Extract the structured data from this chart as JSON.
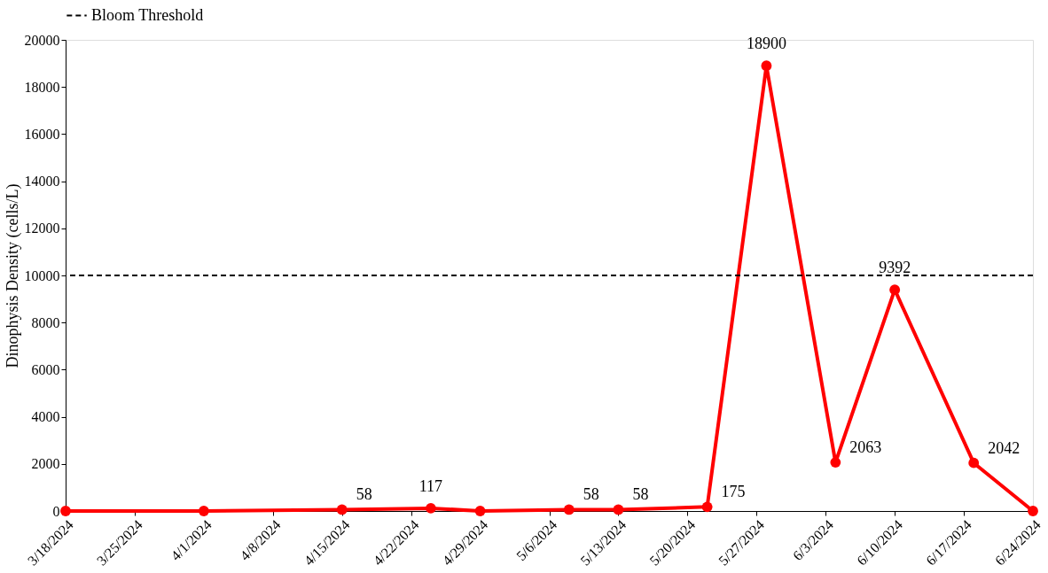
{
  "chart_data": {
    "type": "line",
    "ylabel": "Dinophysis Density (cells/L)",
    "x": [
      "2024-03-18",
      "2024-04-01",
      "2024-04-15",
      "2024-04-24",
      "2024-04-29",
      "2024-05-08",
      "2024-05-13",
      "2024-05-22",
      "2024-05-28",
      "2024-06-04",
      "2024-06-10",
      "2024-06-18",
      "2024-06-24"
    ],
    "series": [
      {
        "color": "#ff0000",
        "values": [
          0,
          0,
          58,
          117,
          0,
          58,
          58,
          175,
          18900,
          2063,
          9392,
          2042,
          0
        ],
        "value_labels": [
          null,
          null,
          "58",
          "117",
          null,
          "58",
          "58",
          "175",
          "18900",
          "2063",
          "9392",
          "2042",
          null
        ]
      }
    ],
    "xlim": [
      "2024-03-18",
      "2024-06-24"
    ],
    "xticks": [
      {
        "value": "2024-03-18",
        "label": "3/18/2024"
      },
      {
        "value": "2024-03-25",
        "label": "3/25/2024"
      },
      {
        "value": "2024-04-01",
        "label": "4/1/2024"
      },
      {
        "value": "2024-04-08",
        "label": "4/8/2024"
      },
      {
        "value": "2024-04-15",
        "label": "4/15/2024"
      },
      {
        "value": "2024-04-22",
        "label": "4/22/2024"
      },
      {
        "value": "2024-04-29",
        "label": "4/29/2024"
      },
      {
        "value": "2024-05-06",
        "label": "5/6/2024"
      },
      {
        "value": "2024-05-13",
        "label": "5/13/2024"
      },
      {
        "value": "2024-05-20",
        "label": "5/20/2024"
      },
      {
        "value": "2024-05-27",
        "label": "5/27/2024"
      },
      {
        "value": "2024-06-03",
        "label": "6/3/2024"
      },
      {
        "value": "2024-06-10",
        "label": "6/10/2024"
      },
      {
        "value": "2024-06-17",
        "label": "6/17/2024"
      },
      {
        "value": "2024-06-24",
        "label": "6/24/2024"
      }
    ],
    "ylim": [
      0,
      20000
    ],
    "yticks": [
      0,
      2000,
      4000,
      6000,
      8000,
      10000,
      12000,
      14000,
      16000,
      18000,
      20000
    ],
    "ref_lines": [
      {
        "axis": "y",
        "value": 10000,
        "label": "Bloom Threshold",
        "color": "#000000",
        "line_style": "dashed"
      }
    ],
    "legend": "top",
    "grid": false,
    "marker": "circle",
    "line_style": "solid"
  }
}
